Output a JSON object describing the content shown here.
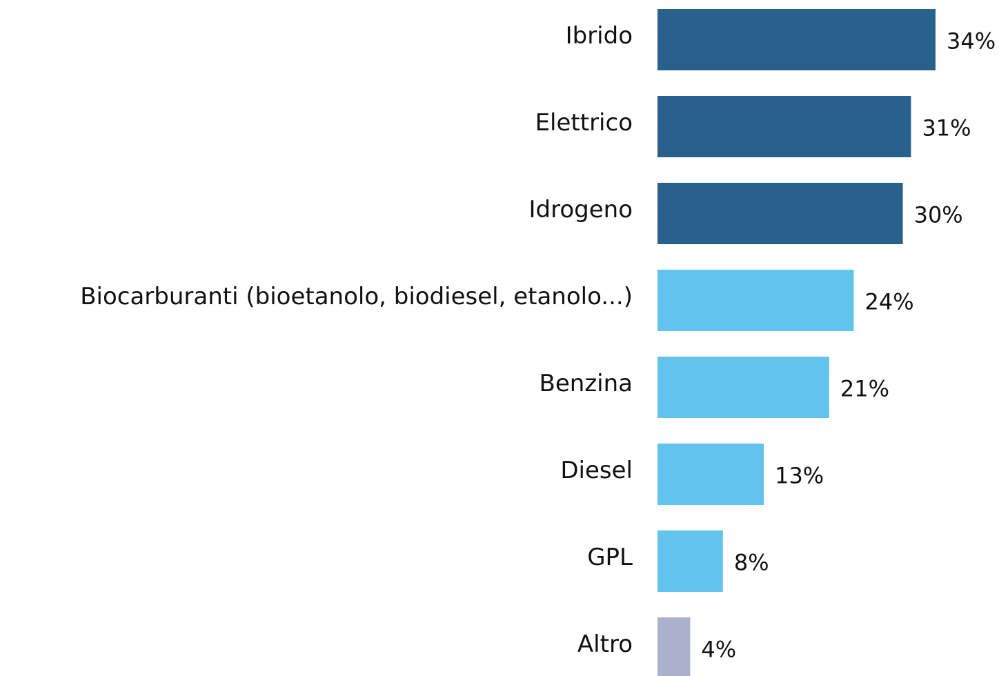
{
  "chart_data": {
    "type": "bar",
    "orientation": "horizontal",
    "categories": [
      "Ibrido",
      "Elettrico",
      "Idrogeno",
      "Biocarburanti (bioetanolo, biodiesel, etanolo...)",
      "Benzina",
      "Diesel",
      "GPL",
      "Altro"
    ],
    "values": [
      34,
      31,
      30,
      24,
      21,
      13,
      8,
      4
    ],
    "value_labels": [
      "34%",
      "31%",
      "30%",
      "24%",
      "21%",
      "13%",
      "8%",
      "4%"
    ],
    "colors": [
      "#27618c",
      "#27618c",
      "#27618c",
      "#62c4ec",
      "#62c4ec",
      "#62c4ec",
      "#62c4ec",
      "#abb0cc"
    ]
  }
}
